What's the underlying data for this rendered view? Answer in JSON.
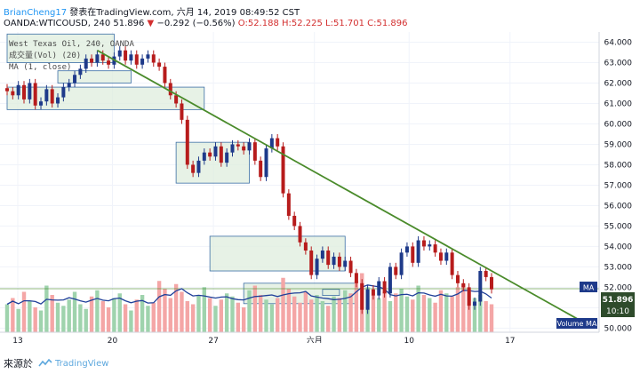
{
  "header": {
    "author": "BrianCheng17",
    "published_text": "發表在TradingView.com, 六月 14, 2019 08:49:52 CST",
    "symbol_line_prefix": "OANDA:WTICOUSD, 240 51.896",
    "change_text": "−0.292 (−0.56%)",
    "ohlc_text": "O:52.188 H:52.225 L:51.701 C:51.896"
  },
  "legend": {
    "title": "West Texas Oil, 240, OANDA",
    "volume": "成交量(Vol) (20)",
    "ma": "MA (1, close)"
  },
  "price_axis": {
    "ticks": [
      "64.000",
      "63.000",
      "62.000",
      "61.000",
      "60.000",
      "59.000",
      "58.000",
      "57.000",
      "56.000",
      "55.000",
      "54.000",
      "53.000",
      "52.000",
      "51.000",
      "50.000"
    ],
    "ma_tag": "MA",
    "last_price": "51.896",
    "countdown": "10:10",
    "volume_tag": "Volume MA"
  },
  "time_axis": {
    "labels": [
      "13",
      "20",
      "27",
      "六月",
      "10",
      "17"
    ]
  },
  "footer": {
    "source_text": "來源於",
    "brand": "TradingView"
  },
  "colors": {
    "up": "#26a69a",
    "down": "#ef5350",
    "candle_up": "#1e3a8a",
    "candle_down": "#b71c1c",
    "trendline": "#4a8b2b",
    "zone_fill": "#dfeedd",
    "zone_stroke": "#3b6ea5",
    "ma_line": "#1f3f99",
    "vol_up": "#9fd3ad",
    "vol_down": "#f4a6a6",
    "last_price_bg": "#2e4b2b",
    "axis_tag_bg": "#1e3a8a"
  },
  "chart_data": {
    "type": "candlestick",
    "symbol": "OANDA:WTICOUSD",
    "timeframe": "240",
    "ylim": [
      49.8,
      64.5
    ],
    "close_path": [
      [
        0,
        61.6
      ],
      [
        1,
        61.4
      ],
      [
        2,
        61.9
      ],
      [
        3,
        61.2
      ],
      [
        4,
        62.0
      ],
      [
        5,
        60.9
      ],
      [
        6,
        61.1
      ],
      [
        7,
        61.7
      ],
      [
        8,
        61.0
      ],
      [
        9,
        61.3
      ],
      [
        10,
        61.8
      ],
      [
        11,
        62.0
      ],
      [
        12,
        62.4
      ],
      [
        13,
        62.7
      ],
      [
        14,
        63.2
      ],
      [
        15,
        63.0
      ],
      [
        16,
        63.4
      ],
      [
        17,
        63.1
      ],
      [
        18,
        62.9
      ],
      [
        19,
        63.3
      ],
      [
        20,
        63.6
      ],
      [
        21,
        63.1
      ],
      [
        22,
        63.4
      ],
      [
        23,
        62.9
      ],
      [
        24,
        63.2
      ],
      [
        25,
        63.4
      ],
      [
        26,
        63.0
      ],
      [
        27,
        62.8
      ],
      [
        28,
        62.0
      ],
      [
        29,
        61.4
      ],
      [
        30,
        61.0
      ],
      [
        31,
        60.2
      ],
      [
        32,
        58.0
      ],
      [
        33,
        57.6
      ],
      [
        34,
        58.2
      ],
      [
        35,
        58.6
      ],
      [
        36,
        58.4
      ],
      [
        37,
        58.9
      ],
      [
        38,
        58.1
      ],
      [
        39,
        58.6
      ],
      [
        40,
        59.0
      ],
      [
        41,
        58.9
      ],
      [
        42,
        58.7
      ],
      [
        43,
        59.1
      ],
      [
        44,
        58.2
      ],
      [
        45,
        57.4
      ],
      [
        46,
        58.8
      ],
      [
        47,
        59.3
      ],
      [
        48,
        58.9
      ],
      [
        49,
        56.6
      ],
      [
        50,
        55.5
      ],
      [
        51,
        55.0
      ],
      [
        52,
        54.2
      ],
      [
        53,
        53.8
      ],
      [
        54,
        52.6
      ],
      [
        55,
        53.4
      ],
      [
        56,
        53.8
      ],
      [
        57,
        53.1
      ],
      [
        58,
        53.5
      ],
      [
        59,
        53.0
      ],
      [
        60,
        53.3
      ],
      [
        61,
        52.7
      ],
      [
        62,
        52.2
      ],
      [
        63,
        50.9
      ],
      [
        64,
        51.9
      ],
      [
        65,
        51.6
      ],
      [
        66,
        52.3
      ],
      [
        67,
        51.7
      ],
      [
        68,
        53.0
      ],
      [
        69,
        52.6
      ],
      [
        70,
        53.7
      ],
      [
        71,
        54.0
      ],
      [
        72,
        53.2
      ],
      [
        73,
        54.3
      ],
      [
        74,
        54.0
      ],
      [
        75,
        54.1
      ],
      [
        76,
        53.7
      ],
      [
        77,
        53.3
      ],
      [
        78,
        53.7
      ],
      [
        79,
        52.6
      ],
      [
        80,
        52.2
      ],
      [
        81,
        52.0
      ],
      [
        82,
        51.1
      ],
      [
        83,
        51.3
      ],
      [
        84,
        52.8
      ],
      [
        85,
        52.5
      ],
      [
        86,
        51.9
      ]
    ],
    "volume": [
      18,
      22,
      15,
      26,
      20,
      16,
      14,
      30,
      24,
      19,
      17,
      21,
      26,
      18,
      15,
      23,
      27,
      20,
      16,
      22,
      25,
      18,
      14,
      21,
      24,
      17,
      19,
      33,
      28,
      22,
      31,
      26,
      20,
      18,
      24,
      29,
      22,
      17,
      21,
      25,
      23,
      19,
      16,
      27,
      30,
      24,
      21,
      18,
      22,
      35,
      28,
      23,
      19,
      26,
      21,
      24,
      20,
      17,
      23,
      22,
      27,
      25,
      33,
      38,
      29,
      24,
      22,
      26,
      20,
      25,
      28,
      23,
      21,
      30,
      24,
      22,
      19,
      27,
      25,
      23,
      29,
      31,
      26,
      22,
      24,
      20,
      18
    ],
    "zones": [
      {
        "from": [
          0,
          64.4
        ],
        "to": [
          19,
          63.0
        ]
      },
      {
        "from": [
          9,
          62.6
        ],
        "to": [
          22,
          62.0
        ]
      },
      {
        "from": [
          0,
          61.8
        ],
        "to": [
          35,
          60.7
        ]
      },
      {
        "from": [
          30,
          59.1
        ],
        "to": [
          43,
          57.1
        ]
      },
      {
        "from": [
          36,
          54.5
        ],
        "to": [
          60,
          52.8
        ]
      },
      {
        "from": [
          42,
          52.2
        ],
        "to": [
          62,
          51.2
        ]
      },
      {
        "from": [
          56,
          51.9
        ],
        "to": [
          59,
          51.6
        ]
      }
    ],
    "trendline": {
      "from": [
        16,
        63.6
      ],
      "to": [
        68,
        50.2
      ]
    }
  }
}
